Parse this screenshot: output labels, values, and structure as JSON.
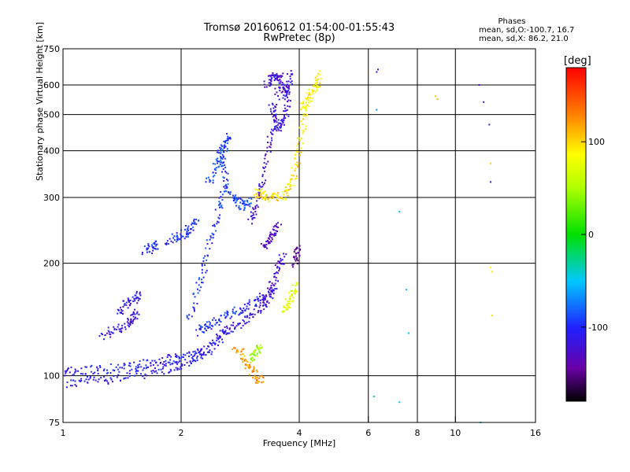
{
  "chart_data": {
    "type": "scatter",
    "title": "Tromsø 20160612 01:54:00-01:55:43",
    "subtitle": "RwPretec (8p)",
    "xlabel": "Frequency [MHz]",
    "ylabel": "Stationary phase Virtual Height [km]",
    "x_scale": "log",
    "y_scale": "log",
    "xlim": [
      1,
      16
    ],
    "ylim": [
      75,
      750
    ],
    "x_ticks": [
      1,
      2,
      4,
      6,
      8,
      10,
      16
    ],
    "x_tick_labels": [
      "1",
      "2",
      "4",
      "6",
      "8",
      "10",
      "16"
    ],
    "y_ticks": [
      75,
      100,
      200,
      300,
      400,
      500,
      600,
      750
    ],
    "y_tick_labels": [
      "75",
      "100",
      "200",
      "300",
      "400",
      "500",
      "600",
      "750"
    ],
    "grid": true,
    "phases_box": {
      "title": "Phases",
      "o_line": "mean, sd,O:-100.7, 16.7",
      "x_line": "mean, sd,X:  86.2, 21.0"
    },
    "colorbar": {
      "unit": "[deg]",
      "range": [
        -180,
        180
      ],
      "ticks": [
        100,
        0,
        -100
      ],
      "tick_labels": [
        "100",
        "0",
        "-100"
      ]
    },
    "traces": [
      {
        "x": [
          1.02,
          1.15,
          1.3,
          1.5,
          1.7,
          1.9,
          2.05,
          2.2,
          2.35,
          2.5,
          2.62
        ],
        "y": [
          95,
          97,
          98,
          100,
          102,
          105,
          108,
          112,
          118,
          125,
          135
        ],
        "phase": -110
      },
      {
        "x": [
          1.0,
          1.1,
          1.25,
          1.4,
          1.55,
          1.7,
          1.85,
          2.0,
          2.2,
          2.4
        ],
        "y": [
          102,
          103,
          104,
          105,
          106,
          108,
          110,
          112,
          115,
          118
        ],
        "phase": -105
      },
      {
        "x": [
          1.25,
          1.35,
          1.45,
          1.5,
          1.55
        ],
        "y": [
          128,
          132,
          136,
          142,
          150
        ],
        "phase": -115
      },
      {
        "x": [
          1.38,
          1.45,
          1.52,
          1.58
        ],
        "y": [
          148,
          155,
          160,
          165
        ],
        "phase": -112
      },
      {
        "x": [
          1.62,
          1.68,
          1.75
        ],
        "y": [
          215,
          220,
          225
        ],
        "phase": -100
      },
      {
        "x": [
          1.85,
          1.95,
          2.05,
          2.12,
          2.2
        ],
        "y": [
          230,
          235,
          240,
          248,
          260
        ],
        "phase": -98
      },
      {
        "x": [
          2.1,
          2.2,
          2.3,
          2.4,
          2.5,
          2.6
        ],
        "y": [
          140,
          170,
          200,
          240,
          280,
          320
        ],
        "phase": -95
      },
      {
        "x": [
          2.35,
          2.45,
          2.55,
          2.6,
          2.7,
          2.8,
          2.9,
          3.0
        ],
        "y": [
          330,
          360,
          380,
          330,
          300,
          290,
          285,
          295
        ],
        "phase": -90
      },
      {
        "x": [
          2.5,
          2.55,
          2.6,
          2.65
        ],
        "y": [
          380,
          400,
          420,
          440
        ],
        "phase": -92
      },
      {
        "x": [
          2.2,
          2.3,
          2.45,
          2.6,
          2.8,
          3.0,
          3.2
        ],
        "y": [
          130,
          135,
          140,
          145,
          150,
          155,
          165
        ],
        "phase": -100
      },
      {
        "x": [
          2.5,
          2.7,
          2.9,
          3.1,
          3.3,
          3.5
        ],
        "y": [
          130,
          135,
          140,
          148,
          160,
          175
        ],
        "phase": -115
      },
      {
        "x": [
          3.0,
          3.1,
          3.2,
          3.3,
          3.4,
          3.5,
          3.6
        ],
        "y": [
          260,
          280,
          320,
          380,
          450,
          560,
          650
        ],
        "phase": -120
      },
      {
        "x": [
          3.4,
          3.5,
          3.6,
          3.7,
          3.75,
          3.8
        ],
        "y": [
          520,
          470,
          460,
          500,
          560,
          640
        ],
        "phase": -118
      },
      {
        "x": [
          3.3,
          3.4,
          3.5,
          3.6,
          3.7,
          3.8
        ],
        "y": [
          600,
          620,
          640,
          600,
          560,
          650
        ],
        "phase": -122
      },
      {
        "x": [
          3.2,
          3.3,
          3.45,
          3.55,
          3.65
        ],
        "y": [
          155,
          165,
          180,
          195,
          210
        ],
        "phase": -125
      },
      {
        "x": [
          3.25,
          3.35,
          3.45,
          3.55
        ],
        "y": [
          220,
          230,
          240,
          250
        ],
        "phase": -128
      },
      {
        "x": [
          3.1,
          3.2,
          3.3,
          3.5,
          3.7,
          3.85,
          3.95,
          4.05,
          4.15
        ],
        "y": [
          310,
          305,
          300,
          300,
          305,
          330,
          380,
          440,
          520
        ],
        "phase": 95
      },
      {
        "x": [
          4.1,
          4.2,
          4.3,
          4.45,
          4.5
        ],
        "y": [
          520,
          540,
          570,
          600,
          640
        ],
        "phase": 90
      },
      {
        "x": [
          3.65,
          3.75,
          3.85,
          3.9
        ],
        "y": [
          150,
          155,
          165,
          175
        ],
        "phase": 70
      },
      {
        "x": [
          3.0,
          3.1,
          3.2
        ],
        "y": [
          110,
          115,
          120
        ],
        "phase": 45
      },
      {
        "x": [
          2.75,
          2.9,
          3.0,
          3.1,
          3.2
        ],
        "y": [
          120,
          112,
          105,
          100,
          96
        ],
        "phase": 120
      },
      {
        "x": [
          3.9,
          3.95,
          4.0
        ],
        "y": [
          200,
          210,
          220
        ],
        "phase": -150
      },
      {
        "x": [
          6.3,
          6.35
        ],
        "y": [
          650,
          660
        ],
        "phase": -105
      },
      {
        "x": [
          6.3,
          7.2,
          7.5,
          7.6
        ],
        "y": [
          515,
          275,
          170,
          130
        ],
        "phase": -60
      },
      {
        "x": [
          11.5,
          11.8,
          12.2,
          12.3
        ],
        "y": [
          600,
          540,
          470,
          330
        ],
        "phase": -120
      },
      {
        "x": [
          12.3,
          12.3,
          12.4,
          12.4
        ],
        "y": [
          370,
          195,
          190,
          145
        ],
        "phase": 95
      },
      {
        "x": [
          8.9,
          9.0
        ],
        "y": [
          560,
          550
        ],
        "phase": 110
      },
      {
        "x": [
          6.2,
          7.2,
          11.6
        ],
        "y": [
          88,
          85,
          75
        ],
        "phase": -40
      }
    ]
  }
}
